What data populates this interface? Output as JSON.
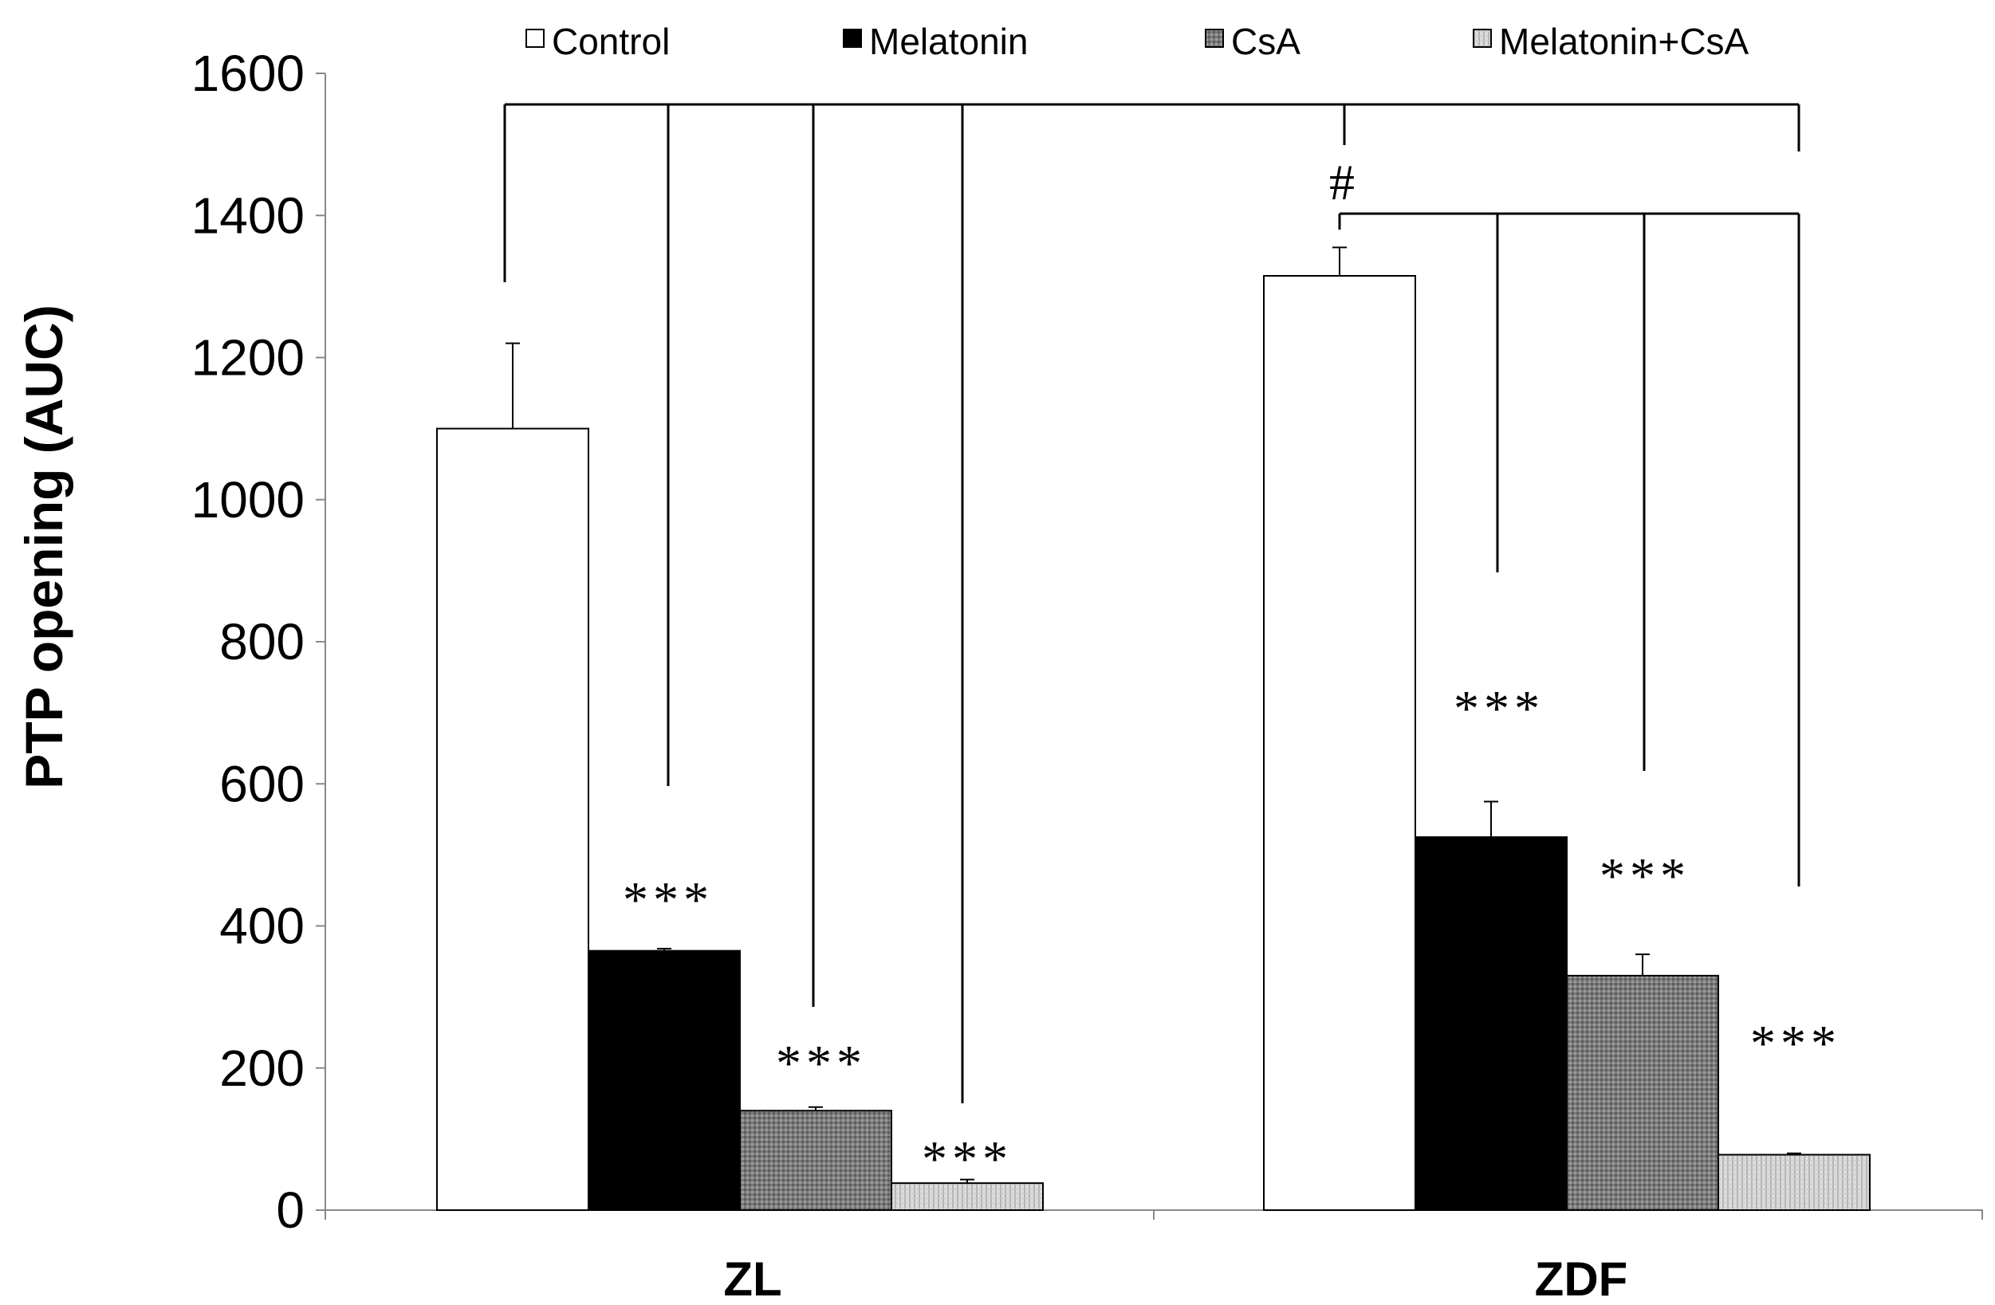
{
  "chart_data": {
    "type": "bar",
    "title": "",
    "xlabel": "",
    "ylabel": "PTP opening (AUC)",
    "ylim": [
      0,
      1600
    ],
    "yticks": [
      0,
      200,
      400,
      600,
      800,
      1000,
      1200,
      1400,
      1600
    ],
    "ytick_labels": [
      "0",
      "200",
      "400",
      "600",
      "800",
      "1000",
      "1200",
      "1400",
      "1600"
    ],
    "categories": [
      "ZL",
      "ZDF"
    ],
    "grid": false,
    "legend_position": "top",
    "series": [
      {
        "name": "Control",
        "values": [
          1100,
          1315
        ],
        "errors": [
          120,
          40
        ],
        "fill": "white"
      },
      {
        "name": "Melatonin",
        "values": [
          365,
          525
        ],
        "errors": [
          3,
          50
        ],
        "fill": "black"
      },
      {
        "name": "CsA",
        "values": [
          140,
          330
        ],
        "errors": [
          5,
          30
        ],
        "fill": "dark-gray-hatch"
      },
      {
        "name": "Melatonin+CsA",
        "values": [
          38,
          78
        ],
        "errors": [
          5,
          2
        ],
        "fill": "light-gray-hatch"
      }
    ],
    "annotations": [
      {
        "text": "***",
        "category": "ZL",
        "series": "Melatonin"
      },
      {
        "text": "***",
        "category": "ZL",
        "series": "CsA"
      },
      {
        "text": "***",
        "category": "ZL",
        "series": "Melatonin+CsA"
      },
      {
        "text": "***",
        "category": "ZDF",
        "series": "Melatonin"
      },
      {
        "text": "***",
        "category": "ZDF",
        "series": "CsA"
      },
      {
        "text": "***",
        "category": "ZDF",
        "series": "Melatonin+CsA"
      },
      {
        "text": "#",
        "comparison": "ZL Control vs ZDF Control"
      }
    ]
  }
}
